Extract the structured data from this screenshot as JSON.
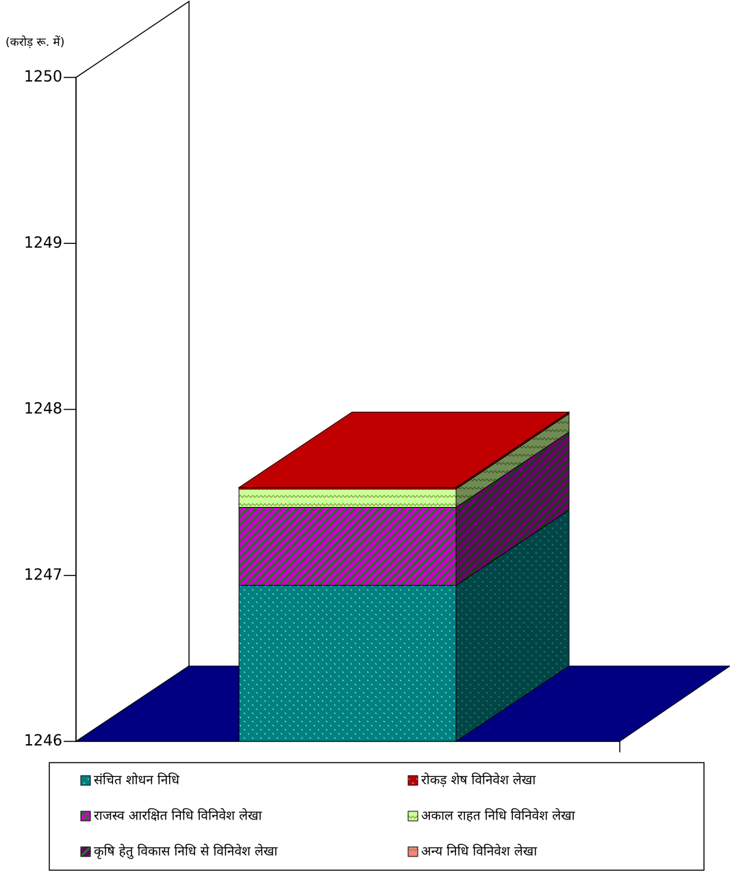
{
  "chart_data": {
    "type": "bar3d_stacked",
    "y_axis_label": "(करोड़ रू. में)",
    "ylim": [
      1246,
      1250
    ],
    "yticks": [
      1246,
      1247,
      1248,
      1249,
      1250
    ],
    "series": [
      {
        "name": "संचित शोधन निधि",
        "color": "#008080",
        "values": [
          1246.94
        ]
      },
      {
        "name": "राजस्व आरक्षित निधि विनिवेश लेखा",
        "color": "#cc00cc",
        "values": [
          0.47
        ]
      },
      {
        "name": "अकाल राहत निधि विनिवेश लेखा",
        "color": "#ccff99",
        "values": [
          0.11
        ]
      },
      {
        "name": "रोकड़ शेष विनिवेश लेखा",
        "color": "#c00000",
        "values": [
          0.01
        ]
      },
      {
        "name": "कृषि हेतु विकास निधि से विनिवेश लेखा",
        "color": "#660066",
        "values": [
          0
        ]
      },
      {
        "name": "अन्य निधि विनिवेश लेखा",
        "color": "#ff8080",
        "values": [
          0
        ]
      }
    ],
    "floor_color": "#000080"
  }
}
